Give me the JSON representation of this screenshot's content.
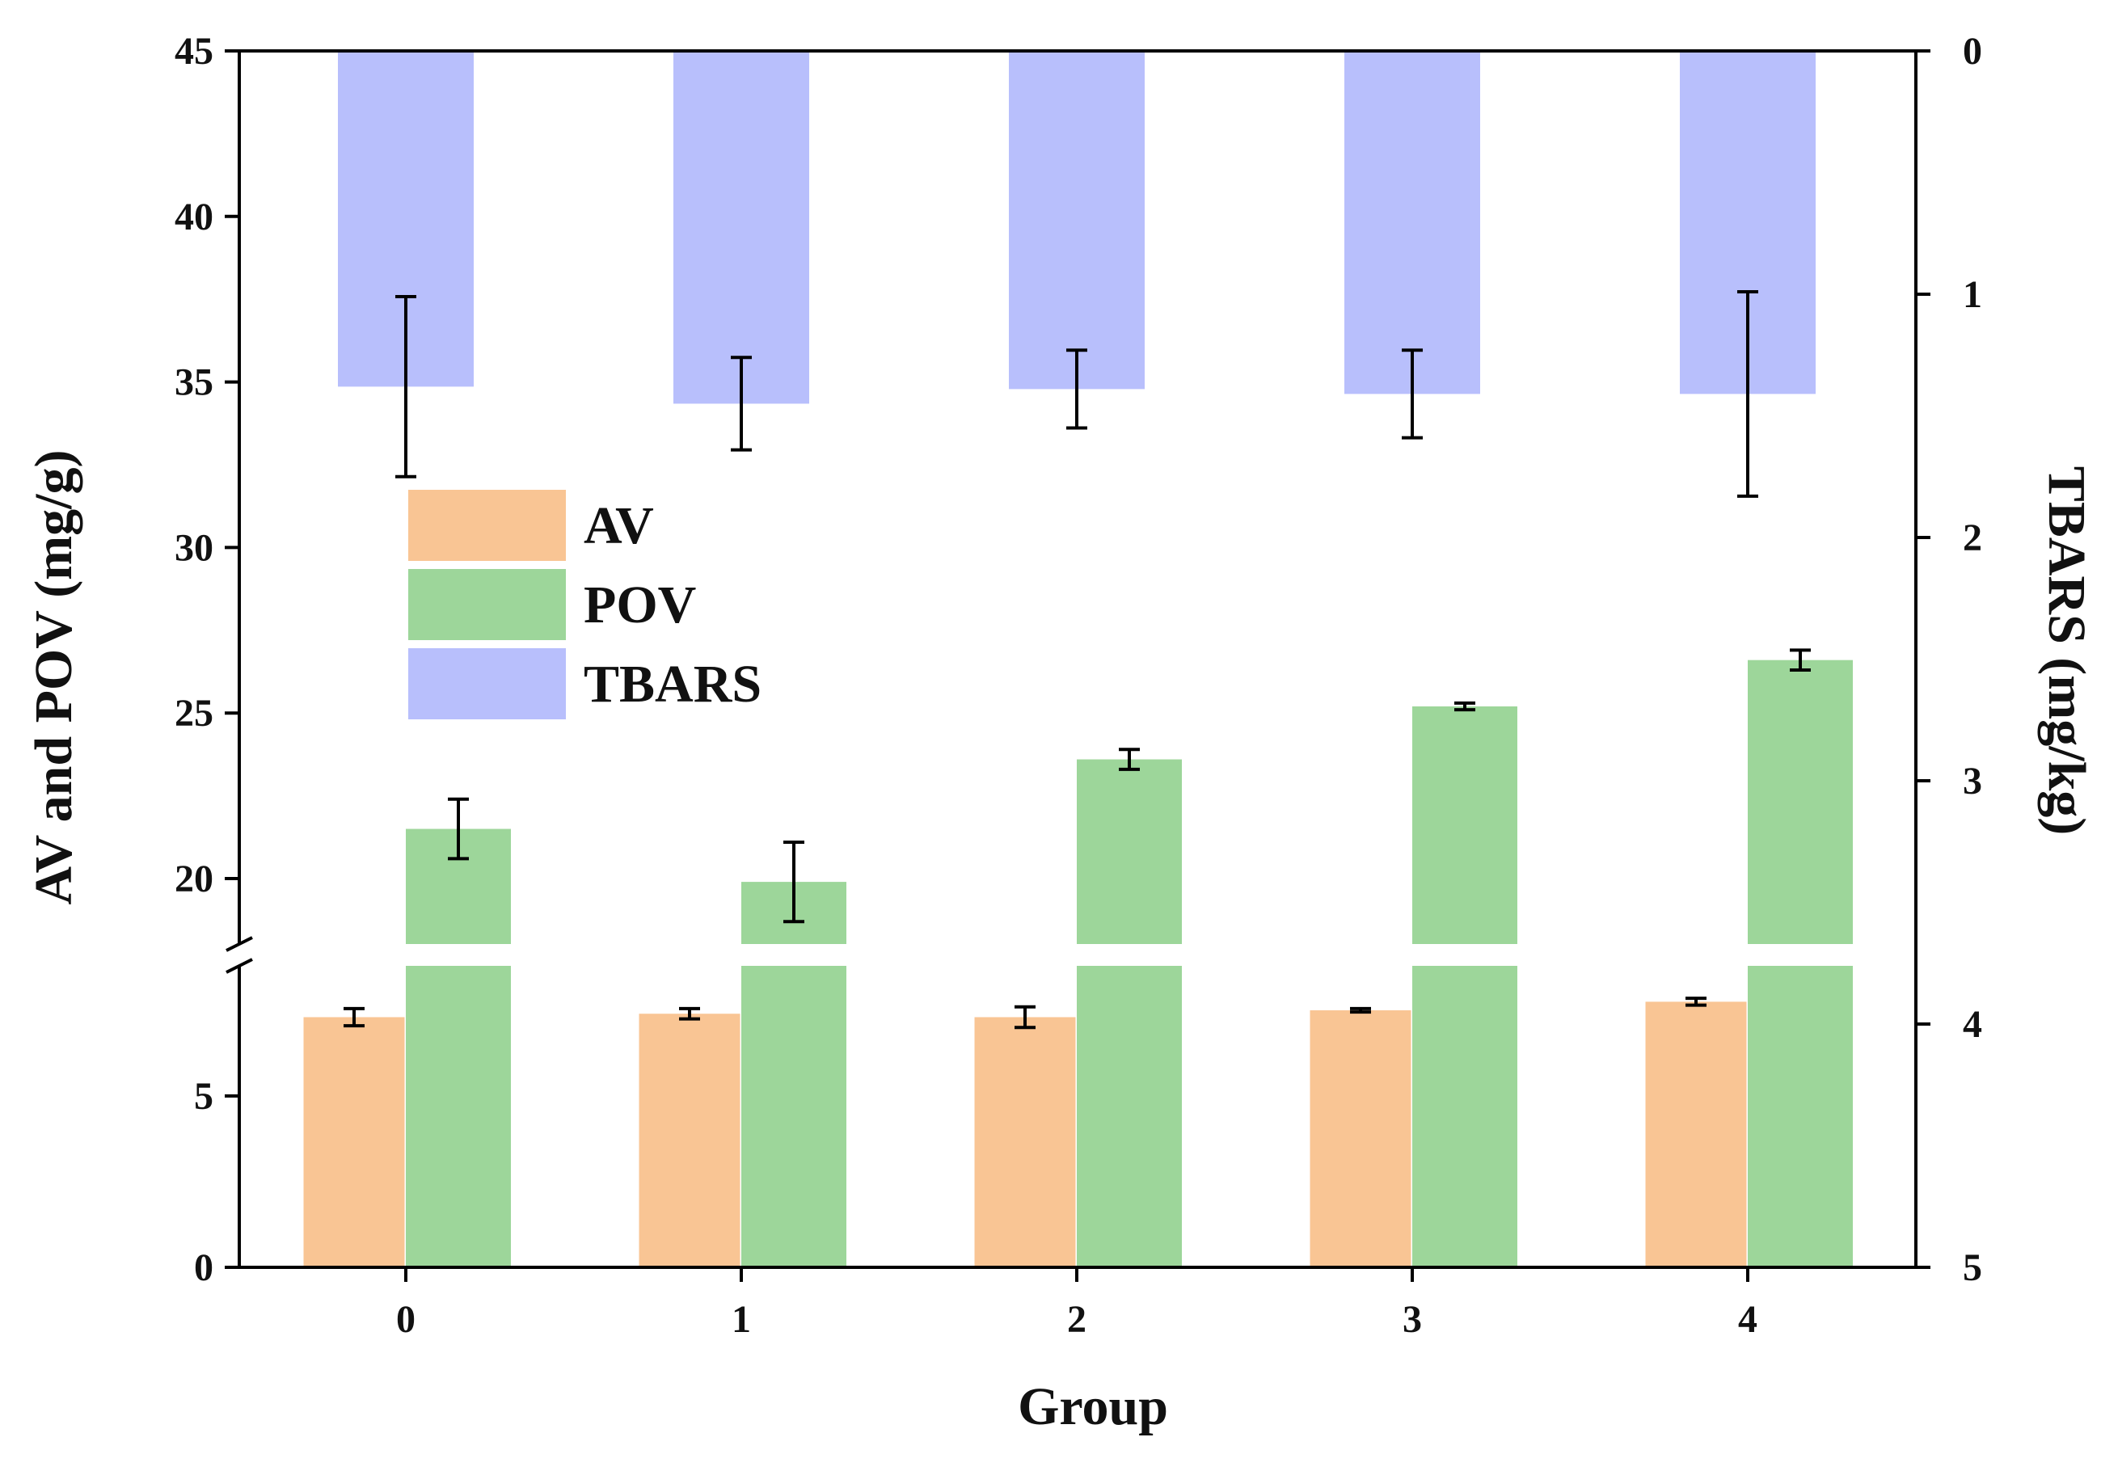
{
  "chart_data": {
    "type": "bar",
    "title": "",
    "xlabel": "Group",
    "ylabel_left": "AV and POV (mg/g)",
    "ylabel_right": "TBARS (mg/kg)",
    "categories": [
      "0",
      "1",
      "2",
      "3",
      "4"
    ],
    "left_axis": {
      "broken": true,
      "lower_segment_range": [
        0,
        8.2
      ],
      "upper_segment_range": [
        18.5,
        45
      ],
      "lower_ticks": [
        "0",
        "5"
      ],
      "upper_ticks": [
        "20",
        "25",
        "30",
        "35",
        "40",
        "45"
      ]
    },
    "right_axis": {
      "range": [
        0,
        5
      ],
      "inverted": true,
      "ticks": [
        "0",
        "1",
        "2",
        "3",
        "4",
        "5"
      ]
    },
    "series": [
      {
        "name": "AV",
        "axis": "left",
        "color": "#f9c594",
        "values": [
          7.3,
          7.4,
          7.3,
          7.5,
          7.75
        ],
        "errors": [
          0.25,
          0.15,
          0.3,
          0.05,
          0.1
        ]
      },
      {
        "name": "POV",
        "axis": "left",
        "color": "#9dd69a",
        "values": [
          21.5,
          19.9,
          23.6,
          25.2,
          26.6
        ],
        "errors": [
          0.9,
          1.2,
          0.3,
          0.1,
          0.3
        ]
      },
      {
        "name": "TBARS",
        "axis": "right",
        "color": "#b8bffc",
        "values": [
          1.38,
          1.45,
          1.39,
          1.41,
          1.41
        ],
        "errors": [
          0.37,
          0.19,
          0.16,
          0.18,
          0.42
        ]
      }
    ],
    "legend": {
      "position": "upper-left",
      "entries": [
        "AV",
        "POV",
        "TBARS"
      ]
    }
  }
}
